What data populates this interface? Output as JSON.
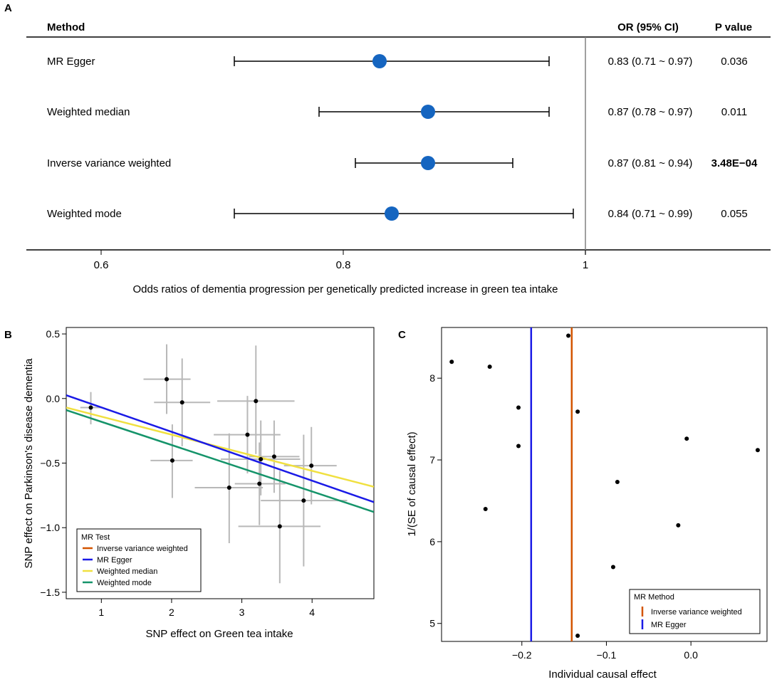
{
  "chart_data": [
    {
      "panel": "A",
      "type": "forest",
      "header": {
        "method": "Method",
        "or": "OR (95% CI)",
        "p": "P value"
      },
      "rows": [
        {
          "method": "MR Egger",
          "or": 0.83,
          "lo": 0.71,
          "hi": 0.97,
          "or_text": "0.83 (0.71 ~ 0.97)",
          "p": "0.036",
          "p_bold": false
        },
        {
          "method": "Weighted median",
          "or": 0.87,
          "lo": 0.78,
          "hi": 0.97,
          "or_text": "0.87 (0.78 ~ 0.97)",
          "p": "0.011",
          "p_bold": false
        },
        {
          "method": "Inverse variance weighted",
          "or": 0.87,
          "lo": 0.81,
          "hi": 0.94,
          "or_text": "0.87 (0.81 ~ 0.94)",
          "p": "3.48E−04",
          "p_bold": true
        },
        {
          "method": "Weighted mode",
          "or": 0.84,
          "lo": 0.71,
          "hi": 0.99,
          "or_text": "0.84 (0.71 ~ 0.99)",
          "p": "0.055",
          "p_bold": false
        }
      ],
      "xlim": [
        0.54,
        1.0
      ],
      "ref_line": 1,
      "xticks": [
        0.6,
        0.8,
        1
      ],
      "xtick_labels": [
        "0.6",
        "0.8",
        "1"
      ],
      "xlabel": "Odds ratios of dementia progression per genetically predicted increase in green tea intake",
      "point_color": "#1565c0"
    },
    {
      "panel": "B",
      "type": "scatter",
      "xlabel": "SNP effect on Green tea intake",
      "ylabel": "SNP effect on Parkinson's disease dementia",
      "xlim": [
        0.5,
        4.88
      ],
      "ylim": [
        -1.55,
        0.55
      ],
      "xticks": [
        1,
        2,
        3,
        4
      ],
      "xtick_labels": [
        "1",
        "2",
        "3",
        "4"
      ],
      "yticks": [
        -1.5,
        -1.0,
        -0.5,
        0.0,
        0.5
      ],
      "ytick_labels": [
        "−1.5",
        "−1.0",
        "−0.5",
        "0.0",
        "0.5"
      ],
      "points": [
        {
          "x": 0.85,
          "y": -0.07,
          "xlo": 0.7,
          "xhi": 1.0,
          "ylo": -0.2,
          "yhi": 0.05
        },
        {
          "x": 1.93,
          "y": 0.15,
          "xlo": 1.6,
          "xhi": 2.27,
          "ylo": -0.12,
          "yhi": 0.42
        },
        {
          "x": 2.15,
          "y": -0.03,
          "xlo": 1.75,
          "xhi": 2.55,
          "ylo": -0.37,
          "yhi": 0.31
        },
        {
          "x": 2.01,
          "y": -0.48,
          "xlo": 1.7,
          "xhi": 2.3,
          "ylo": -0.77,
          "yhi": -0.2
        },
        {
          "x": 3.2,
          "y": -0.02,
          "xlo": 2.65,
          "xhi": 3.75,
          "ylo": -0.43,
          "yhi": 0.41
        },
        {
          "x": 3.08,
          "y": -0.28,
          "xlo": 2.6,
          "xhi": 3.55,
          "ylo": -0.58,
          "yhi": 0.02
        },
        {
          "x": 3.27,
          "y": -0.47,
          "xlo": 2.7,
          "xhi": 3.83,
          "ylo": -0.75,
          "yhi": -0.17
        },
        {
          "x": 3.46,
          "y": -0.45,
          "xlo": 3.1,
          "xhi": 3.82,
          "ylo": -0.73,
          "yhi": -0.17
        },
        {
          "x": 3.99,
          "y": -0.52,
          "xlo": 3.6,
          "xhi": 4.35,
          "ylo": -0.82,
          "yhi": -0.22
        },
        {
          "x": 2.82,
          "y": -0.69,
          "xlo": 2.33,
          "xhi": 3.3,
          "ylo": -1.12,
          "yhi": -0.27
        },
        {
          "x": 3.25,
          "y": -0.66,
          "xlo": 2.9,
          "xhi": 3.62,
          "ylo": -0.98,
          "yhi": -0.34
        },
        {
          "x": 3.88,
          "y": -0.79,
          "xlo": 3.27,
          "xhi": 4.5,
          "ylo": -1.3,
          "yhi": -0.28
        },
        {
          "x": 3.54,
          "y": -0.99,
          "xlo": 2.95,
          "xhi": 4.12,
          "ylo": -1.43,
          "yhi": -0.56
        }
      ],
      "lines": [
        {
          "name": "Inverse variance weighted",
          "color": "#d35400",
          "slope": -0.2,
          "intercept": 0.0,
          "drawn": false
        },
        {
          "name": "MR Egger",
          "color": "#1a1ae6",
          "slope": -0.189,
          "intercept": 0.12,
          "drawn": true
        },
        {
          "name": "Weighted median",
          "color": "#f0e040",
          "slope": -0.14,
          "intercept": 0.0,
          "drawn": true
        },
        {
          "name": "Weighted mode",
          "color": "#15946a",
          "slope": -0.18,
          "intercept": 0.0,
          "drawn": true
        }
      ],
      "legend": {
        "title": "MR Test",
        "position": "bottom-left"
      }
    },
    {
      "panel": "C",
      "type": "funnel",
      "xlabel": "Individual causal effect",
      "ylabel": "1/(SE of causal effect)",
      "xlim": [
        -0.295,
        0.09
      ],
      "ylim": [
        4.78,
        8.62
      ],
      "xticks": [
        -0.2,
        -0.1,
        0.0
      ],
      "xtick_labels": [
        "−0.2",
        "−0.1",
        "0.0"
      ],
      "yticks": [
        5,
        6,
        7,
        8
      ],
      "ytick_labels": [
        "5",
        "6",
        "7",
        "8"
      ],
      "points": [
        {
          "x": -0.283,
          "y": 8.2
        },
        {
          "x": -0.238,
          "y": 8.14
        },
        {
          "x": -0.204,
          "y": 7.64
        },
        {
          "x": -0.204,
          "y": 7.17
        },
        {
          "x": -0.243,
          "y": 6.4
        },
        {
          "x": -0.145,
          "y": 8.52
        },
        {
          "x": -0.134,
          "y": 7.59
        },
        {
          "x": -0.087,
          "y": 6.73
        },
        {
          "x": -0.092,
          "y": 5.69
        },
        {
          "x": -0.015,
          "y": 6.2
        },
        {
          "x": -0.005,
          "y": 7.26
        },
        {
          "x": 0.079,
          "y": 7.12
        },
        {
          "x": -0.134,
          "y": 4.85
        }
      ],
      "vlines": [
        {
          "name": "Inverse variance weighted",
          "x": -0.141,
          "color": "#d35400"
        },
        {
          "name": "MR Egger",
          "x": -0.189,
          "color": "#1a1ae6"
        }
      ],
      "legend": {
        "title": "MR Method",
        "position": "bottom-right"
      }
    }
  ],
  "panel_labels": [
    "A",
    "B",
    "C"
  ]
}
